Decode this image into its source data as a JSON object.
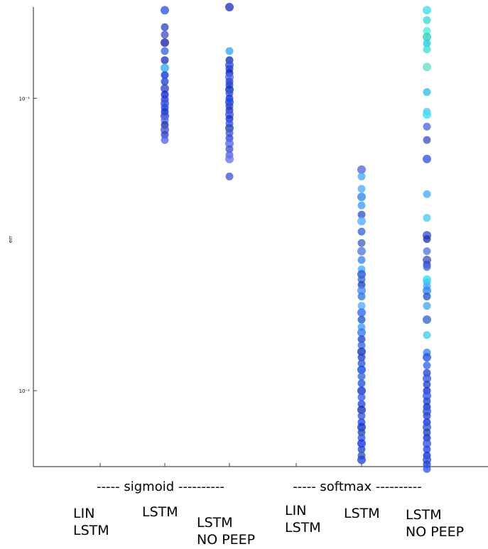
{
  "chart_data": {
    "type": "scatter",
    "yscale": "log",
    "ylim": [
      0.0055,
      0.205
    ],
    "ylabel": "err",
    "yticks": [
      {
        "value": 0.1,
        "label": "10⁻¹"
      },
      {
        "value": 0.01,
        "label": "10⁻²"
      }
    ],
    "groups": [
      "----- sigmoid ----------",
      "----- softmax ----------"
    ],
    "categories": [
      [
        "LIN",
        "LSTM"
      ],
      [
        "LSTM"
      ],
      [
        "LSTM",
        "NO PEEP"
      ],
      [
        "LIN",
        "LSTM"
      ],
      [
        "LSTM"
      ],
      [
        "LSTM",
        "NO PEEP"
      ]
    ],
    "series": [
      {
        "category_index": 1,
        "values": [
          0.2,
          0.175,
          0.165,
          0.155,
          0.145,
          0.135,
          0.127,
          0.12,
          0.114,
          0.108,
          0.103,
          0.099,
          0.096,
          0.093,
          0.09,
          0.087,
          0.084,
          0.081,
          0.078,
          0.075,
          0.072
        ],
        "colors": [
          "#3355dd",
          "#3344cc",
          "#4455bb",
          "#2222aa",
          "#3366dd",
          "#2233bb",
          "#33aaee",
          "#1133dd",
          "#2244cc",
          "#3344bb",
          "#1122cc",
          "#2233dd",
          "#4455cc",
          "#2244ee",
          "#1133bb",
          "#3344cc",
          "#5566dd",
          "#2233aa",
          "#4455cc",
          "#3344bb",
          "#5566ee"
        ]
      },
      {
        "category_index": 2,
        "values": [
          0.205,
          0.145,
          0.135,
          0.13,
          0.126,
          0.122,
          0.118,
          0.114,
          0.111,
          0.107,
          0.104,
          0.1,
          0.097,
          0.094,
          0.091,
          0.088,
          0.085,
          0.082,
          0.079,
          0.076,
          0.073,
          0.07,
          0.067,
          0.064,
          0.062,
          0.054
        ],
        "colors": [
          "#2233bb",
          "#33aaee",
          "#1133aa",
          "#3355dd",
          "#2244cc",
          "#1122bb",
          "#4466ee",
          "#3344cc",
          "#2244dd",
          "#1133bb",
          "#3355cc",
          "#2233dd",
          "#1144ee",
          "#3344bb",
          "#2233cc",
          "#4455dd",
          "#1133cc",
          "#3355ee",
          "#2244bb",
          "#4455cc",
          "#3344dd",
          "#5566ee",
          "#4455cc",
          "#5566dd",
          "#6677ee",
          "#4455dd"
        ]
      },
      {
        "category_index": 4,
        "values": [
          0.057,
          0.054,
          0.049,
          0.046,
          0.043,
          0.04,
          0.038,
          0.035,
          0.032,
          0.03,
          0.028,
          0.026,
          0.025,
          0.024,
          0.023,
          0.022,
          0.021,
          0.0195,
          0.0185,
          0.0175,
          0.0165,
          0.0158,
          0.015,
          0.0143,
          0.0136,
          0.013,
          0.0124,
          0.0118,
          0.0112,
          0.0106,
          0.01,
          0.0095,
          0.009,
          0.0086,
          0.0082,
          0.0078,
          0.0075,
          0.0072,
          0.0069,
          0.0066,
          0.0063,
          0.006,
          0.0058
        ],
        "colors": [
          "#5566dd",
          "#44aaff",
          "#55aaff",
          "#3388ee",
          "#4499ff",
          "#3355cc",
          "#55aaff",
          "#3366dd",
          "#4466bb",
          "#5577dd",
          "#3388ee",
          "#44aaff",
          "#2255dd",
          "#3366cc",
          "#2244bb",
          "#4488ee",
          "#3377dd",
          "#55aaff",
          "#3366ee",
          "#2255cc",
          "#4499ff",
          "#3377ee",
          "#2244cc",
          "#3366dd",
          "#1133bb",
          "#2244cc",
          "#3355dd",
          "#1144ee",
          "#3366cc",
          "#2255dd",
          "#1133cc",
          "#3355ee",
          "#2244dd",
          "#1133bb",
          "#3355cc",
          "#2244ee",
          "#1133cc",
          "#2244bb",
          "#3355dd",
          "#1133ee",
          "#2244cc",
          "#3355bb",
          "#2244dd"
        ]
      },
      {
        "category_index": 5,
        "values": [
          0.2,
          0.185,
          0.17,
          0.162,
          0.154,
          0.147,
          0.128,
          0.105,
          0.09,
          0.088,
          0.08,
          0.072,
          0.062,
          0.047,
          0.039,
          0.034,
          0.033,
          0.03,
          0.028,
          0.027,
          0.0265,
          0.024,
          0.0235,
          0.0228,
          0.022,
          0.021,
          0.0195,
          0.0175,
          0.0155,
          0.0135,
          0.013,
          0.0122,
          0.0115,
          0.011,
          0.0105,
          0.01,
          0.0096,
          0.0092,
          0.0088,
          0.0085,
          0.0082,
          0.0078,
          0.0075,
          0.0072,
          0.0069,
          0.0066,
          0.0063,
          0.006,
          0.0058,
          0.0056,
          0.0054
        ],
        "colors": [
          "#44ddee",
          "#33ddcc",
          "#44eedd",
          "#33ccbb",
          "#22ccdd",
          "#44ddcc",
          "#66ddcc",
          "#33bbee",
          "#55ccee",
          "#44ddee",
          "#5566dd",
          "#4455bb",
          "#3355dd",
          "#44aaff",
          "#44ccee",
          "#3355cc",
          "#2233aa",
          "#5577dd",
          "#4455bb",
          "#3344cc",
          "#4466dd",
          "#44ddee",
          "#33ccee",
          "#55aaff",
          "#3388ee",
          "#2255cc",
          "#44aaee",
          "#3366cc",
          "#44ccee",
          "#3388ee",
          "#2255dd",
          "#3366ee",
          "#2244cc",
          "#3355dd",
          "#2244bb",
          "#1133cc",
          "#3355ee",
          "#2244cc",
          "#1133bb",
          "#3355dd",
          "#2244cc",
          "#1133dd",
          "#3355cc",
          "#2244bb",
          "#1133cc",
          "#3355dd",
          "#2244ee",
          "#1133cc",
          "#3355dd",
          "#2244cc",
          "#3355ee"
        ]
      }
    ],
    "grid": false,
    "legend": "none"
  }
}
